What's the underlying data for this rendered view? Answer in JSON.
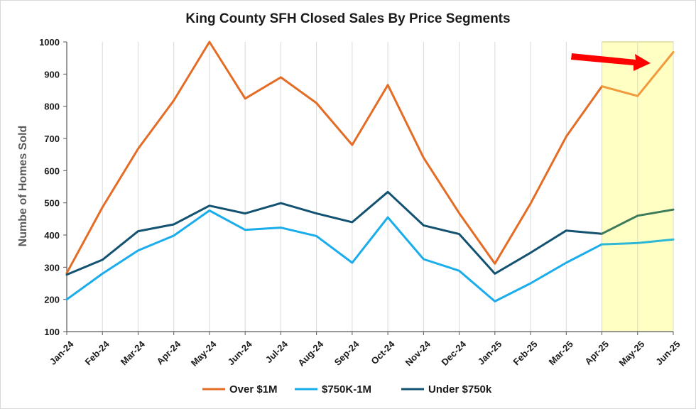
{
  "chart_data": {
    "type": "line",
    "title": "King County SFH Closed Sales By Price Segments",
    "ylabel": "Numbe of Homes Sold",
    "xlabel": "",
    "ylim": [
      100,
      1000
    ],
    "yticks": [
      100,
      200,
      300,
      400,
      500,
      600,
      700,
      800,
      900,
      1000
    ],
    "categories": [
      "Jan-24",
      "Feb-24",
      "Mar-24",
      "Apr-24",
      "May-24",
      "Jun-24",
      "Jul-24",
      "Aug-24",
      "Sep-24",
      "Oct-24",
      "Nov-24",
      "Dec-24",
      "Jan-25",
      "Feb-25",
      "Mar-25",
      "Apr-25",
      "May-25",
      "Jun-25"
    ],
    "series": [
      {
        "name": "Over $1M",
        "color": "#e46c24",
        "values": [
          282,
          486,
          668,
          818,
          1000,
          824,
          890,
          810,
          680,
          866,
          640,
          468,
          311,
          498,
          706,
          862,
          832,
          968
        ]
      },
      {
        "name": "$750K-1M",
        "color": "#1aadeb",
        "values": [
          200,
          280,
          352,
          398,
          476,
          416,
          423,
          397,
          314,
          455,
          325,
          289,
          194,
          250,
          314,
          371,
          375,
          386
        ]
      },
      {
        "name": "Under $750k",
        "color": "#145271",
        "values": [
          277,
          323,
          412,
          433,
          491,
          467,
          499,
          467,
          440,
          534,
          430,
          403,
          280,
          345,
          414,
          404,
          460,
          479
        ]
      }
    ],
    "highlight": {
      "from": "Apr-25",
      "to": "Jun-25",
      "color": "#ffffc4",
      "border": "#c9c97a",
      "tinted_colors": {
        "Over $1M": "#ef9b3d",
        "$750K-1M": "#2eb8d6",
        "Under $750k": "#3d7a5a"
      }
    },
    "annotation": {
      "type": "arrow",
      "color": "#ff0000",
      "description": "red arrow pointing right toward Jun-25"
    },
    "legend": {
      "position": "bottom"
    },
    "grid": {
      "x": true,
      "y": false,
      "color": "#d9d9d9"
    }
  }
}
